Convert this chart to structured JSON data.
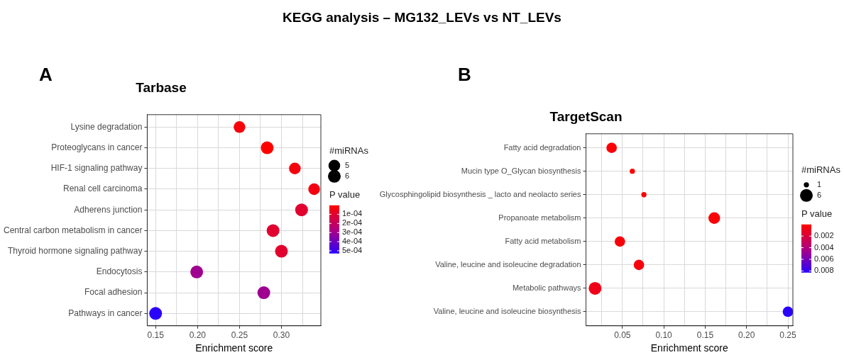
{
  "chart_data": [
    {
      "type": "bubble",
      "orientation": "horizontal",
      "title": "Tarbase",
      "xlabel": "Enrichment score",
      "legend_title": "#miRNAs",
      "clabel": "P value",
      "annotations": [
        "KEGG analysis – MG132_LEVs vs NT_LEVs",
        "A"
      ],
      "categories": [
        "Lysine degradation",
        "Proteoglycans in cancer",
        "HIF-1 signaling pathway",
        "Renal cell carcinoma",
        "Adherens junction",
        "Central carbon metabolism in cancer",
        "Thyroid hormone signaling pathway",
        "Endocytosis",
        "Focal adhesion",
        "Pathways in cancer"
      ],
      "values": [
        0.25,
        0.283,
        0.316,
        0.339,
        0.324,
        0.29,
        0.3,
        0.199,
        0.279,
        0.15
      ],
      "sizes": [
        5,
        6,
        5,
        5,
        6,
        6,
        6,
        6,
        6,
        6
      ],
      "size_legend": [
        {
          "value": 5,
          "label": "5"
        },
        {
          "value": 6,
          "label": "6"
        }
      ],
      "cvalues": [
        2e-05,
        2e-06,
        3e-05,
        4e-05,
        0.0001,
        0.0001,
        0.0001,
        0.0003,
        0.0003,
        0.00053
      ],
      "clim": [
        2e-06,
        0.00053
      ],
      "cticks": [
        {
          "value": 0.0001,
          "label": "1e-04"
        },
        {
          "value": 0.0002,
          "label": "2e-04"
        },
        {
          "value": 0.0003,
          "label": "3e-04"
        },
        {
          "value": 0.0004,
          "label": "4e-04"
        },
        {
          "value": 0.0005,
          "label": "5e-04"
        }
      ],
      "xlim": [
        0.14,
        0.347
      ],
      "xticks": [
        {
          "value": 0.15,
          "label": "0.15"
        },
        {
          "value": 0.175,
          "label": null
        },
        {
          "value": 0.2,
          "label": "0.20"
        },
        {
          "value": 0.225,
          "label": null
        },
        {
          "value": 0.25,
          "label": "0.25"
        },
        {
          "value": 0.275,
          "label": null
        },
        {
          "value": 0.3,
          "label": "0.30"
        },
        {
          "value": 0.325,
          "label": null
        }
      ],
      "grid": true
    },
    {
      "type": "bubble",
      "orientation": "horizontal",
      "title": "TargetScan",
      "xlabel": "Enrichment score",
      "legend_title": "#miRNAs",
      "clabel": "P value",
      "annotations": [
        "B"
      ],
      "categories": [
        "Fatty acid degradation",
        "Mucin type O_Glycan biosynthesis",
        "Glycosphingolipid biosynthesis _ lacto and neolacto series",
        "Propanoate metabolism",
        "Fatty acid metabolism",
        "Valine, leucine and isoleucine degradation",
        "Metabolic pathways",
        "Valine, leucine and isoleucine biosynthesis"
      ],
      "values": [
        0.037,
        0.062,
        0.076,
        0.161,
        0.047,
        0.07,
        0.017,
        0.25
      ],
      "sizes": [
        4,
        1,
        1,
        5,
        4,
        4,
        6,
        4
      ],
      "size_legend": [
        {
          "value": 1,
          "label": "1"
        },
        {
          "value": 6,
          "label": "6"
        }
      ],
      "cvalues": [
        0.0002,
        0.0001,
        0.0001,
        0.0002,
        0.0003,
        0.0004,
        0.0008,
        0.0083
      ],
      "clim": [
        0,
        0.0083
      ],
      "cticks": [
        {
          "value": 0.002,
          "label": "0.002"
        },
        {
          "value": 0.004,
          "label": "0.004"
        },
        {
          "value": 0.006,
          "label": "0.006"
        },
        {
          "value": 0.008,
          "label": "0.008"
        }
      ],
      "xlim": [
        0.006,
        0.256
      ],
      "xticks": [
        {
          "value": 0.025,
          "label": null
        },
        {
          "value": 0.05,
          "label": "0.05"
        },
        {
          "value": 0.075,
          "label": null
        },
        {
          "value": 0.1,
          "label": "0.10"
        },
        {
          "value": 0.125,
          "label": null
        },
        {
          "value": 0.15,
          "label": "0.15"
        },
        {
          "value": 0.175,
          "label": null
        },
        {
          "value": 0.2,
          "label": "0.20"
        },
        {
          "value": 0.225,
          "label": null
        },
        {
          "value": 0.25,
          "label": "0.25"
        }
      ],
      "grid": true
    }
  ]
}
